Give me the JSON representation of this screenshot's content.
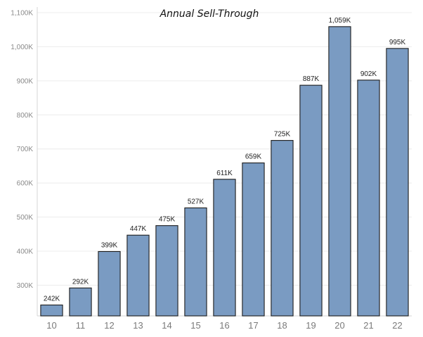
{
  "chart_data": {
    "type": "bar",
    "title": "Annual Sell-Through",
    "xlabel": "",
    "ylabel": "",
    "categories": [
      "10",
      "11",
      "12",
      "13",
      "14",
      "15",
      "16",
      "17",
      "18",
      "19",
      "20",
      "21",
      "22"
    ],
    "values": [
      242,
      292,
      399,
      447,
      475,
      527,
      611,
      659,
      725,
      887,
      1059,
      902,
      995
    ],
    "data_labels": [
      "242K",
      "292K",
      "399K",
      "447K",
      "475K",
      "527K",
      "611K",
      "659K",
      "725K",
      "887K",
      "1,059K",
      "902K",
      "995K"
    ],
    "yticks": [
      300,
      400,
      500,
      600,
      700,
      800,
      900,
      1000,
      1100
    ],
    "ytick_labels": [
      "300K",
      "400K",
      "500K",
      "600K",
      "700K",
      "800K",
      "900K",
      "1,000K",
      "1,100K"
    ],
    "ylim": [
      210,
      1100
    ],
    "grid": true,
    "bar_color": "#7a9bc2",
    "legend": "none"
  }
}
